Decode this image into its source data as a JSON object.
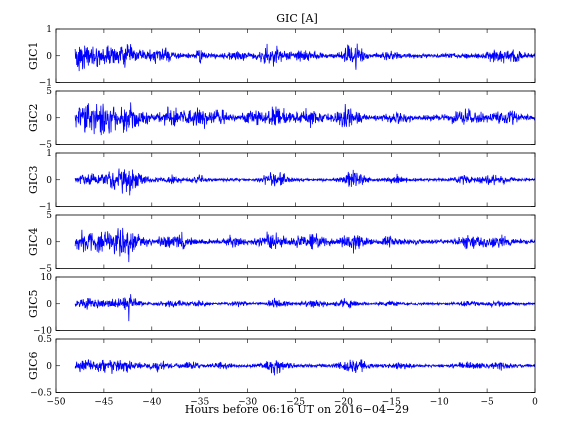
{
  "chart_data": {
    "type": "line",
    "title": "GIC [A]",
    "xlabel": "Hours before  06:16 UT on 2016−04−29",
    "xlim": [
      -50,
      0
    ],
    "x_ticks": [
      -50,
      -45,
      -40,
      -35,
      -30,
      -25,
      -20,
      -15,
      -10,
      -5,
      0
    ],
    "x_tick_labels": [
      "−50",
      "−45",
      "−40",
      "−35",
      "−30",
      "−25",
      "−20",
      "−15",
      "−10",
      "−5",
      "0"
    ],
    "grid": false,
    "line_color": "#0000ff",
    "data_start_hours": -48,
    "panels": [
      {
        "name": "GIC1",
        "ylim": [
          -1,
          1
        ],
        "y_ticks": [
          -1,
          0,
          1
        ],
        "y_tick_labels": [
          "−1",
          "0",
          "1"
        ],
        "noise": 0.05,
        "events": [
          {
            "x": -47.5,
            "width": 0.7,
            "amp": 0.22
          },
          {
            "x": -45.5,
            "width": 1.5,
            "amp": 0.18
          },
          {
            "x": -42.5,
            "width": 1.6,
            "amp": 0.2
          },
          {
            "x": -39,
            "width": 1.2,
            "amp": 0.12
          },
          {
            "x": -35,
            "width": 0.5,
            "amp": 0.12
          },
          {
            "x": -31,
            "width": 1.0,
            "amp": 0.08
          },
          {
            "x": -27.5,
            "width": 1.2,
            "amp": 0.2
          },
          {
            "x": -24,
            "width": 1.5,
            "amp": 0.08
          },
          {
            "x": -19,
            "width": 1.0,
            "amp": 0.22
          },
          {
            "x": -15,
            "width": 1.0,
            "amp": 0.06
          },
          {
            "x": -4,
            "width": 1.5,
            "amp": 0.12
          },
          {
            "x": -2,
            "width": 0.8,
            "amp": 0.1
          }
        ],
        "spikes": [
          {
            "x": -47.7,
            "value": -0.55
          },
          {
            "x": -42.1,
            "value": 0.45
          },
          {
            "x": -27.3,
            "value": -0.45
          },
          {
            "x": -18.7,
            "value": -0.75
          }
        ]
      },
      {
        "name": "GIC2",
        "ylim": [
          -5,
          5
        ],
        "y_ticks": [
          -5,
          0,
          5
        ],
        "y_tick_labels": [
          "−5",
          "0",
          "5"
        ],
        "noise": 0.3,
        "events": [
          {
            "x": -47,
            "width": 1.2,
            "amp": 1.2
          },
          {
            "x": -45,
            "width": 1.2,
            "amp": 1.1
          },
          {
            "x": -42.5,
            "width": 1.8,
            "amp": 1.3
          },
          {
            "x": -38,
            "width": 1.2,
            "amp": 0.8
          },
          {
            "x": -35.5,
            "width": 1.0,
            "amp": 0.9
          },
          {
            "x": -33,
            "width": 1.0,
            "amp": 0.6
          },
          {
            "x": -29.5,
            "width": 1.0,
            "amp": 0.5
          },
          {
            "x": -27,
            "width": 1.2,
            "amp": 0.9
          },
          {
            "x": -23.5,
            "width": 1.2,
            "amp": 0.7
          },
          {
            "x": -19.5,
            "width": 1.2,
            "amp": 0.9
          },
          {
            "x": -14.5,
            "width": 1.0,
            "amp": 0.5
          },
          {
            "x": -7,
            "width": 1.5,
            "amp": 0.7
          },
          {
            "x": -3,
            "width": 1.2,
            "amp": 0.6
          }
        ],
        "spikes": [
          {
            "x": -42.2,
            "value": 3.6
          },
          {
            "x": -19.8,
            "value": 3.2
          },
          {
            "x": -46.8,
            "value": -2.8
          },
          {
            "x": -34.5,
            "value": -2.3
          }
        ]
      },
      {
        "name": "GIC3",
        "ylim": [
          -1,
          1
        ],
        "y_ticks": [
          -1,
          0,
          1
        ],
        "y_tick_labels": [
          "−1",
          "0",
          "1"
        ],
        "noise": 0.03,
        "events": [
          {
            "x": -47,
            "width": 1.0,
            "amp": 0.1
          },
          {
            "x": -44.5,
            "width": 1.5,
            "amp": 0.1
          },
          {
            "x": -42.5,
            "width": 1.6,
            "amp": 0.25
          },
          {
            "x": -38,
            "width": 1.0,
            "amp": 0.08
          },
          {
            "x": -35,
            "width": 1.0,
            "amp": 0.07
          },
          {
            "x": -27,
            "width": 1.2,
            "amp": 0.15
          },
          {
            "x": -19,
            "width": 1.2,
            "amp": 0.18
          },
          {
            "x": -14.5,
            "width": 1.0,
            "amp": 0.07
          },
          {
            "x": -7.5,
            "width": 1.0,
            "amp": 0.08
          },
          {
            "x": -4.5,
            "width": 1.5,
            "amp": 0.1
          }
        ],
        "spikes": [
          {
            "x": -42.3,
            "value": -0.65
          },
          {
            "x": -18.8,
            "value": 0.4
          }
        ]
      },
      {
        "name": "GIC4",
        "ylim": [
          -5,
          5
        ],
        "y_ticks": [
          -5,
          0,
          5
        ],
        "y_tick_labels": [
          "−5",
          "0",
          "5"
        ],
        "noise": 0.25,
        "events": [
          {
            "x": -47,
            "width": 1.2,
            "amp": 0.9
          },
          {
            "x": -45,
            "width": 1.5,
            "amp": 1.0
          },
          {
            "x": -42.5,
            "width": 1.6,
            "amp": 1.1
          },
          {
            "x": -37.5,
            "width": 1.5,
            "amp": 0.7
          },
          {
            "x": -31.5,
            "width": 1.0,
            "amp": 0.4
          },
          {
            "x": -27.5,
            "width": 1.5,
            "amp": 0.7
          },
          {
            "x": -23.5,
            "width": 1.5,
            "amp": 0.8
          },
          {
            "x": -19,
            "width": 1.2,
            "amp": 0.9
          },
          {
            "x": -15,
            "width": 1.0,
            "amp": 0.4
          },
          {
            "x": -7,
            "width": 1.2,
            "amp": 0.5
          },
          {
            "x": -4,
            "width": 1.5,
            "amp": 0.6
          }
        ],
        "spikes": [
          {
            "x": -42.4,
            "value": -3.8
          },
          {
            "x": -47.3,
            "value": 2.5
          }
        ]
      },
      {
        "name": "GIC5",
        "ylim": [
          -10,
          10
        ],
        "y_ticks": [
          -10,
          0,
          10
        ],
        "y_tick_labels": [
          "−10",
          "0",
          "10"
        ],
        "noise": 0.25,
        "events": [
          {
            "x": -47,
            "width": 1.0,
            "amp": 1.0
          },
          {
            "x": -45,
            "width": 1.5,
            "amp": 0.8
          },
          {
            "x": -42.5,
            "width": 1.2,
            "amp": 1.2
          },
          {
            "x": -38,
            "width": 1.2,
            "amp": 0.6
          },
          {
            "x": -35,
            "width": 0.8,
            "amp": 0.5
          },
          {
            "x": -31,
            "width": 1.0,
            "amp": 0.4
          },
          {
            "x": -27,
            "width": 1.2,
            "amp": 0.8
          },
          {
            "x": -23,
            "width": 1.2,
            "amp": 0.7
          },
          {
            "x": -19.5,
            "width": 1.2,
            "amp": 0.8
          },
          {
            "x": -15,
            "width": 1.0,
            "amp": 0.4
          },
          {
            "x": -7,
            "width": 1.0,
            "amp": 0.4
          },
          {
            "x": -4,
            "width": 1.2,
            "amp": 0.5
          }
        ],
        "spikes": [
          {
            "x": -42.4,
            "value": -6.5
          },
          {
            "x": -42.2,
            "value": 4.5
          },
          {
            "x": -27.2,
            "value": 2.2
          },
          {
            "x": -19.9,
            "value": 2.3
          }
        ]
      },
      {
        "name": "GIC6",
        "ylim": [
          -0.5,
          0.5
        ],
        "y_ticks": [
          -0.5,
          0,
          0.5
        ],
        "y_tick_labels": [
          "−0.5",
          "0",
          "0.5"
        ],
        "noise": 0.015,
        "events": [
          {
            "x": -47,
            "width": 1.2,
            "amp": 0.04
          },
          {
            "x": -45,
            "width": 1.5,
            "amp": 0.04
          },
          {
            "x": -43,
            "width": 1.5,
            "amp": 0.05
          },
          {
            "x": -39.5,
            "width": 1.2,
            "amp": 0.04
          },
          {
            "x": -36,
            "width": 1.0,
            "amp": 0.03
          },
          {
            "x": -32.5,
            "width": 1.0,
            "amp": 0.03
          },
          {
            "x": -27,
            "width": 1.5,
            "amp": 0.06
          },
          {
            "x": -19,
            "width": 1.5,
            "amp": 0.06
          },
          {
            "x": -14,
            "width": 1.0,
            "amp": 0.03
          },
          {
            "x": -7,
            "width": 1.2,
            "amp": 0.03
          },
          {
            "x": -3.5,
            "width": 1.5,
            "amp": 0.03
          }
        ],
        "spikes": [
          {
            "x": -47.5,
            "value": -0.17
          },
          {
            "x": -27.2,
            "value": -0.18
          },
          {
            "x": -18.8,
            "value": -0.15
          },
          {
            "x": -43.3,
            "value": 0.12
          }
        ]
      }
    ]
  }
}
